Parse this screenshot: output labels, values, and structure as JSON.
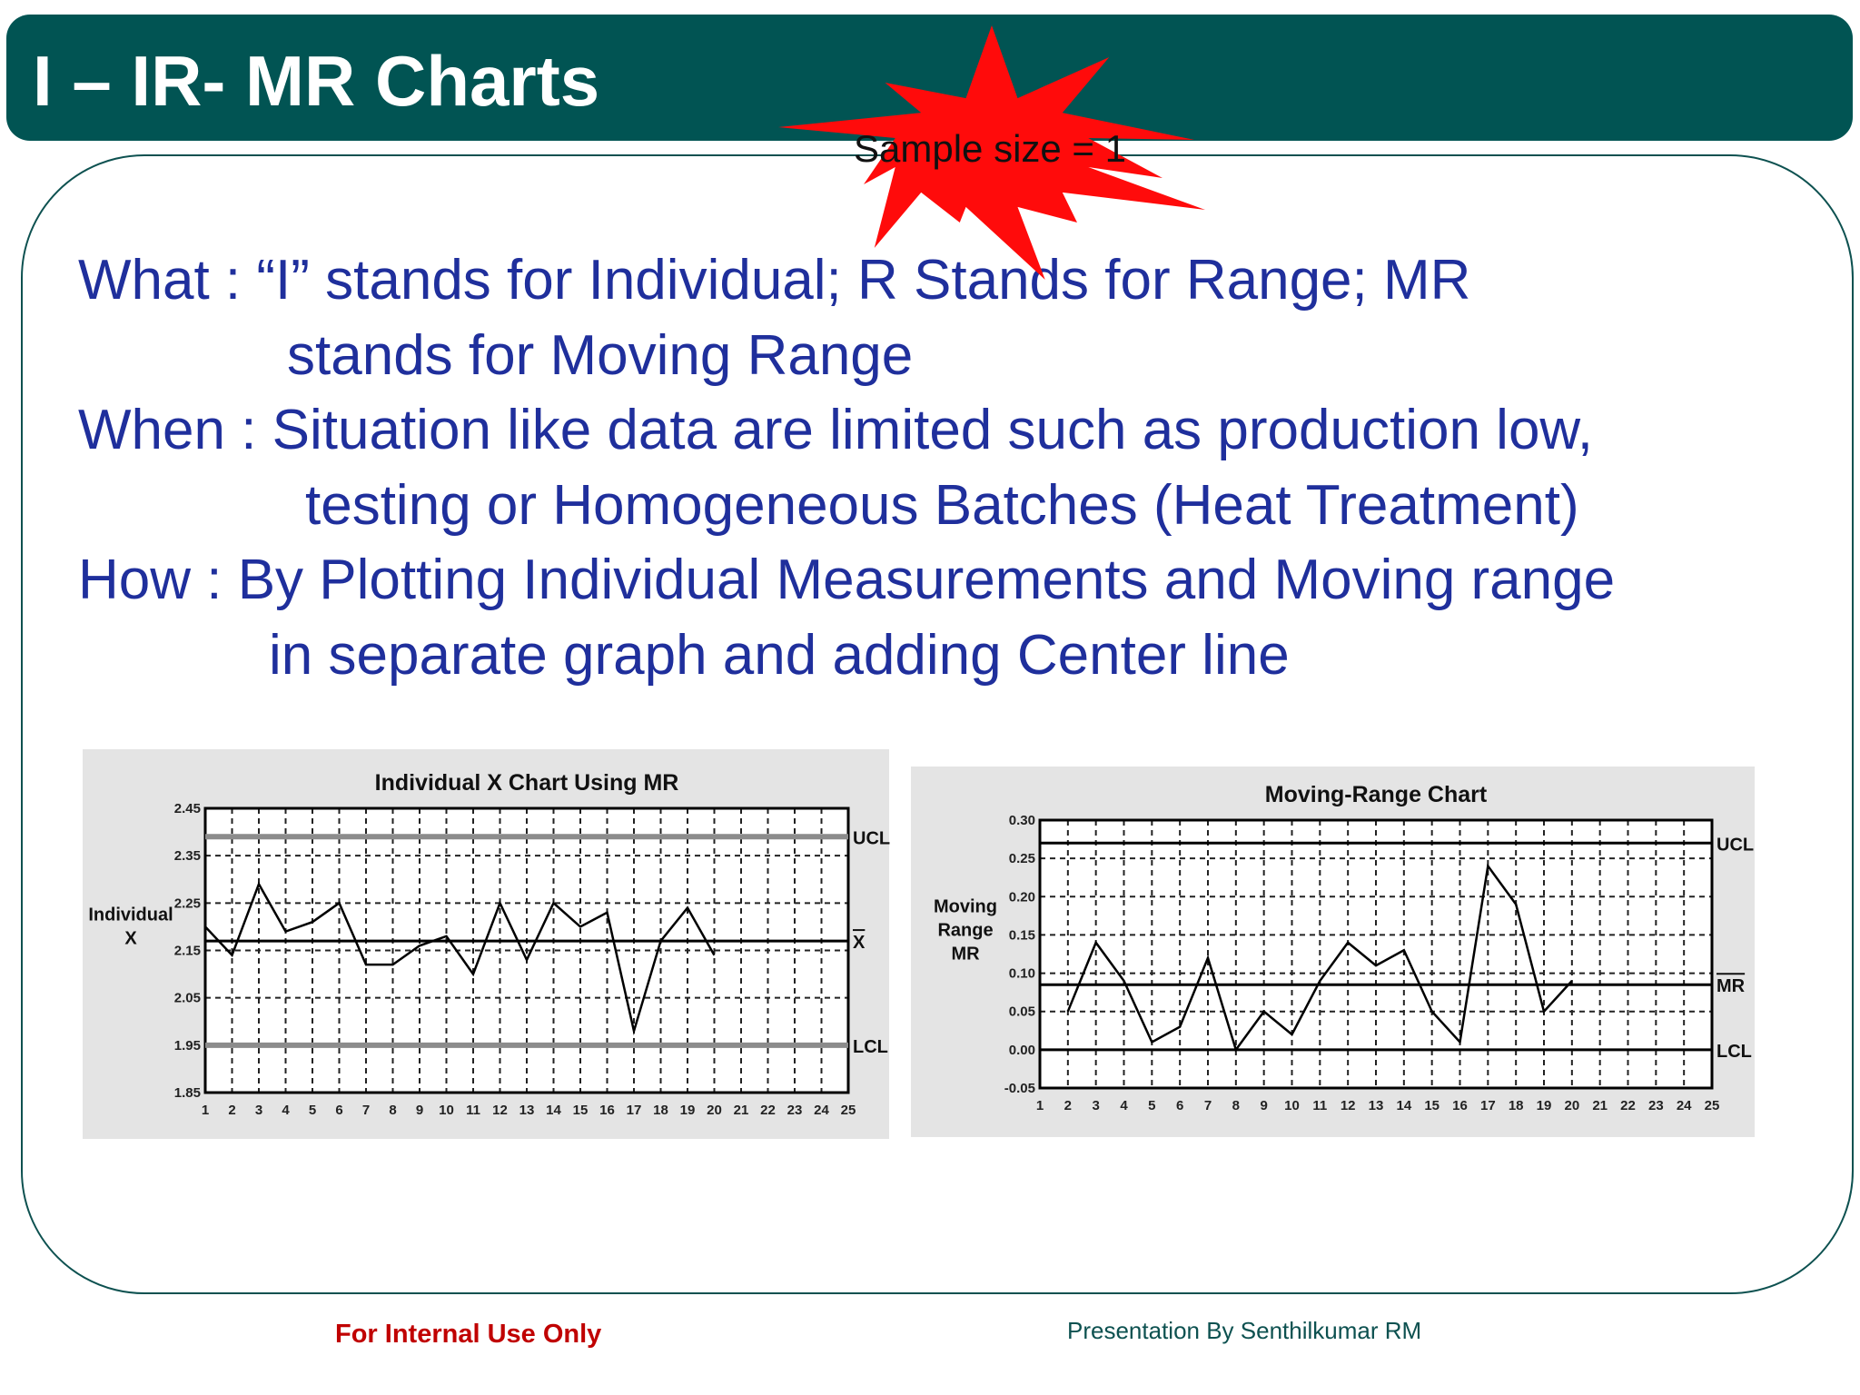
{
  "header": {
    "title": "I – IR- MR Charts"
  },
  "callout": {
    "text": "Sample size = 1"
  },
  "body": [
    "What : “I” stands for Individual; R Stands for Range; MR",
    "stands for Moving Range",
    "When : Situation like data are limited such as production low,",
    "testing or Homogeneous Batches (Heat Treatment)",
    "How : By Plotting Individual Measurements and Moving range",
    "in separate graph and adding Center line"
  ],
  "footer": {
    "left": "For Internal Use Only",
    "right": "Presentation By Senthilkumar RM"
  },
  "chart_data": [
    {
      "type": "line",
      "title": "Individual X Chart Using MR",
      "ylabel": [
        "Individual",
        "X"
      ],
      "color": "#000000",
      "grid": true,
      "x": [
        1,
        2,
        3,
        4,
        5,
        6,
        7,
        8,
        9,
        10,
        11,
        12,
        13,
        14,
        15,
        16,
        17,
        18,
        19,
        20
      ],
      "values": [
        2.2,
        2.14,
        2.29,
        2.19,
        2.21,
        2.25,
        2.12,
        2.12,
        2.16,
        2.18,
        2.1,
        2.25,
        2.13,
        2.25,
        2.2,
        2.23,
        1.98,
        2.17,
        2.24,
        2.14
      ],
      "xlim": [
        1,
        25
      ],
      "xticks": [
        1,
        2,
        3,
        4,
        5,
        6,
        7,
        8,
        9,
        10,
        11,
        12,
        13,
        14,
        15,
        16,
        17,
        18,
        19,
        20,
        21,
        22,
        23,
        24,
        25
      ],
      "ylim": [
        1.85,
        2.45
      ],
      "yticks": [
        1.85,
        1.95,
        2.05,
        2.15,
        2.25,
        2.35,
        2.45
      ],
      "control_lines": [
        {
          "label": "UCL",
          "value": 2.39,
          "color": "#8c8c8c"
        },
        {
          "label": "X",
          "value": 2.17,
          "color": "#000000",
          "overline": true
        },
        {
          "label": "LCL",
          "value": 1.95,
          "color": "#8c8c8c"
        }
      ]
    },
    {
      "type": "line",
      "title": "Moving-Range Chart",
      "ylabel": [
        "Moving",
        "Range",
        "MR"
      ],
      "color": "#000000",
      "grid": true,
      "x": [
        2,
        3,
        4,
        5,
        6,
        7,
        8,
        9,
        10,
        11,
        12,
        13,
        14,
        15,
        16,
        17,
        18,
        19,
        20
      ],
      "values": [
        0.05,
        0.14,
        0.09,
        0.01,
        0.03,
        0.12,
        0.0,
        0.05,
        0.02,
        0.09,
        0.14,
        0.11,
        0.13,
        0.05,
        0.01,
        0.24,
        0.19,
        0.05,
        0.09
      ],
      "xlim": [
        1,
        25
      ],
      "xticks": [
        1,
        2,
        3,
        4,
        5,
        6,
        7,
        8,
        9,
        10,
        11,
        12,
        13,
        14,
        15,
        16,
        17,
        18,
        19,
        20,
        21,
        22,
        23,
        24,
        25
      ],
      "ylim": [
        -0.05,
        0.3
      ],
      "yticks": [
        -0.05,
        {
          "value": 0,
          "label": "0.00"
        },
        0.05,
        {
          "value": 0.1,
          "label": "0.10"
        },
        0.15,
        {
          "value": 0.2,
          "label": "0.20"
        },
        0.25,
        {
          "value": 0.3,
          "label": "0.30"
        }
      ],
      "control_lines": [
        {
          "label": "UCL",
          "value": 0.27,
          "color": "#000000"
        },
        {
          "label": "MR",
          "value": 0.085,
          "color": "#000000",
          "overline": true
        },
        {
          "label": "LCL",
          "value": 0,
          "color": "#000000"
        }
      ]
    }
  ]
}
